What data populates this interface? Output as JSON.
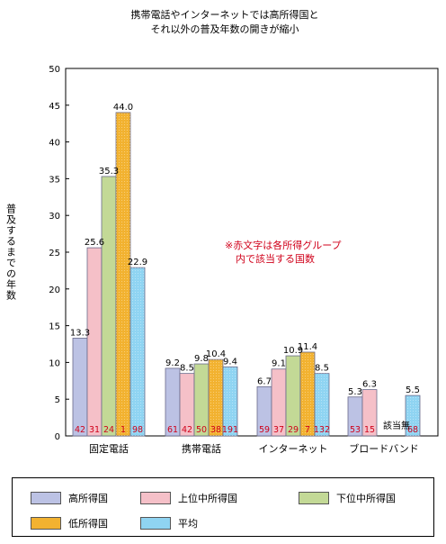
{
  "chart_data": {
    "type": "bar",
    "title": "携帯電話やインターネットでは高所得国と\nそれ以外の普及年数の開きが縮小",
    "ylabel": "普及するまでの年数",
    "xlabel": "",
    "ylim": [
      0,
      50
    ],
    "yticks": [
      0,
      5,
      10,
      15,
      20,
      25,
      30,
      35,
      40,
      45,
      50
    ],
    "categories": [
      "固定電話",
      "携帯電話",
      "インターネット",
      "ブロードバンド"
    ],
    "series": [
      {
        "name": "高所得国",
        "color": "#bcc2e4",
        "values": [
          13.3,
          9.2,
          6.7,
          5.3
        ],
        "value_labels": [
          "13.3",
          "9.2",
          "6.7",
          "5.3"
        ],
        "country_counts": [
          "42",
          "61",
          "59",
          "53"
        ]
      },
      {
        "name": "上位中所得国",
        "color": "#f5c0c8",
        "values": [
          25.6,
          8.5,
          9.1,
          6.3
        ],
        "value_labels": [
          "25.6",
          "8.5",
          "9.1",
          "6.3"
        ],
        "country_counts": [
          "31",
          "42",
          "37",
          "15"
        ]
      },
      {
        "name": "下位中所得国",
        "color": "#c3d996",
        "values": [
          35.3,
          9.8,
          10.9,
          null
        ],
        "value_labels": [
          "35.3",
          "9.8",
          "10.9",
          ""
        ],
        "country_counts": [
          "24",
          "50",
          "29",
          ""
        ]
      },
      {
        "name": "低所得国",
        "color": "#f2b230",
        "values": [
          44.0,
          10.4,
          11.4,
          null
        ],
        "value_labels": [
          "44.0",
          "10.4",
          "11.4",
          ""
        ],
        "country_counts": [
          "1",
          "38",
          "7",
          ""
        ]
      },
      {
        "name": "平均",
        "color": "#8fd4f2",
        "values": [
          22.9,
          9.4,
          8.5,
          5.5
        ],
        "value_labels": [
          "22.9",
          "9.4",
          "8.5",
          "5.5"
        ],
        "country_counts": [
          "98",
          "191",
          "132",
          "68"
        ]
      }
    ],
    "annotations": [
      "※赤文字は各所得グループ\n内で該当する国数",
      "該当無"
    ],
    "legend": "bottom"
  }
}
